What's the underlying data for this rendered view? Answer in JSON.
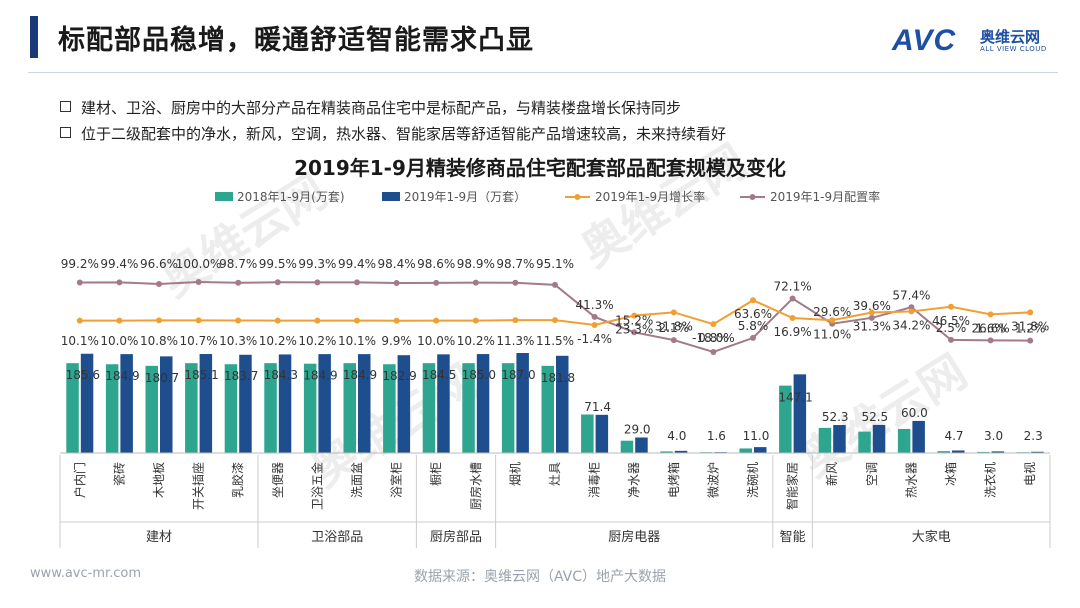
{
  "header": {
    "title": "标配部品稳增，暖通舒适智能需求凸显",
    "logo_text": "AVC",
    "logo_cn": "奥维云网",
    "logo_en": "ALL VIEW CLOUD"
  },
  "bullets": [
    "建材、卫浴、厨房中的大部分产品在精装商品住宅中是标配产品，与精装楼盘增长保持同步",
    "位于二级配套中的净水，新风，空调，热水器、智能家居等舒适智能产品增速较高，未来持续看好"
  ],
  "watermark": "奥维云网",
  "footer": {
    "url": "www.avc-mr.com",
    "source": "数据来源：奥维云网（AVC）地产大数据"
  },
  "colors": {
    "bar2018": "#2ea68f",
    "bar2019": "#1f4e8e",
    "growth_line": "#f0a032",
    "rate_line": "#a37a8a",
    "accent": "#1a3a7c"
  },
  "chart_data": {
    "type": "bar+line",
    "title": "2019年1-9月精装修商品住宅配套部品配套规模及变化",
    "legend": [
      "2018年1-9月(万套)",
      "2019年1-9月（万套）",
      "2019年1-9月增长率",
      "2019年1-9月配置率"
    ],
    "categories": [
      "户内门",
      "瓷砖",
      "木地板",
      "开关插座",
      "乳胶漆",
      "坐便器",
      "卫浴五金",
      "洗面盆",
      "浴室柜",
      "橱柜",
      "厨房水槽",
      "烟机",
      "灶具",
      "消毒柜",
      "净水器",
      "电烤箱",
      "微波炉",
      "洗碗机",
      "智能家居",
      "新风",
      "空调",
      "热水器",
      "冰箱",
      "洗衣机",
      "电视"
    ],
    "groups": [
      {
        "name": "建材",
        "count": 5
      },
      {
        "name": "卫浴部品",
        "count": 4
      },
      {
        "name": "厨房部品",
        "count": 2
      },
      {
        "name": "厨房电器",
        "count": 7
      },
      {
        "name": "智能",
        "count": 1
      },
      {
        "name": "大家电",
        "count": 6
      }
    ],
    "values_2018": [
      168.0,
      166.0,
      163.0,
      168.0,
      166.0,
      168.0,
      167.0,
      168.0,
      166.0,
      168.0,
      168.0,
      168.0,
      163.0,
      72.0,
      23.0,
      3.0,
      1.5,
      8.5,
      126.0,
      47.0,
      40.0,
      45.0,
      3.5,
      2.0,
      1.5
    ],
    "values_2019": [
      185.6,
      184.9,
      180.7,
      185.1,
      183.7,
      184.3,
      184.9,
      184.9,
      182.9,
      184.5,
      185.0,
      187.0,
      181.8,
      71.4,
      29.0,
      4.0,
      1.6,
      11.0,
      147.1,
      52.3,
      52.5,
      60.0,
      4.7,
      3.0,
      2.3
    ],
    "bar_labels": [
      "185.6",
      "184.9",
      "180.7",
      "185.1",
      "183.7",
      "184.3",
      "184.9",
      "184.9",
      "182.9",
      "184.5",
      "185.0",
      "187.0",
      "181.8",
      "71.4",
      "29.0",
      "4.0",
      "1.6",
      "11.0",
      "147.1",
      "52.3",
      "52.5",
      "60.0",
      "4.7",
      "3.0",
      "2.3"
    ],
    "growth_rate": [
      10.1,
      10.0,
      10.8,
      10.7,
      10.3,
      10.2,
      10.2,
      10.1,
      9.9,
      10.0,
      10.2,
      11.3,
      11.5,
      -1.4,
      23.3,
      31.8,
      0.8,
      63.6,
      16.9,
      11.0,
      31.3,
      34.2,
      46.5,
      26.6,
      31.8
    ],
    "config_rate": [
      99.2,
      99.4,
      96.6,
      100.0,
      98.7,
      99.5,
      99.3,
      99.4,
      98.4,
      98.6,
      98.9,
      98.7,
      95.1,
      41.3,
      15.2,
      2.1,
      -18.0,
      5.8,
      72.1,
      29.6,
      39.6,
      57.4,
      2.5,
      1.6,
      1.2
    ],
    "growth_labels": [
      "10.1%",
      "10.0%",
      "10.8%",
      "10.7%",
      "10.3%",
      "10.2%",
      "10.2%",
      "10.1%",
      "9.9%",
      "10.0%",
      "10.2%",
      "11.3%",
      "11.5%",
      "-1.4%",
      "23.3%",
      "31.8%",
      "0.8%",
      "63.6%",
      "16.9%",
      "11.0%",
      "31.3%",
      "34.2%",
      "46.5%",
      "26.6%",
      "31.8%"
    ],
    "config_labels": [
      "99.2%",
      "99.4%",
      "96.6%",
      "100.0%",
      "98.7%",
      "99.5%",
      "99.3%",
      "99.4%",
      "98.4%",
      "98.6%",
      "98.9%",
      "98.7%",
      "95.1%",
      "41.3%",
      "15.2%",
      "2.1%",
      "-18.0%",
      "5.8%",
      "72.1%",
      "29.6%",
      "39.6%",
      "57.4%",
      "2.5%",
      "1.6%",
      "1.2%"
    ]
  }
}
